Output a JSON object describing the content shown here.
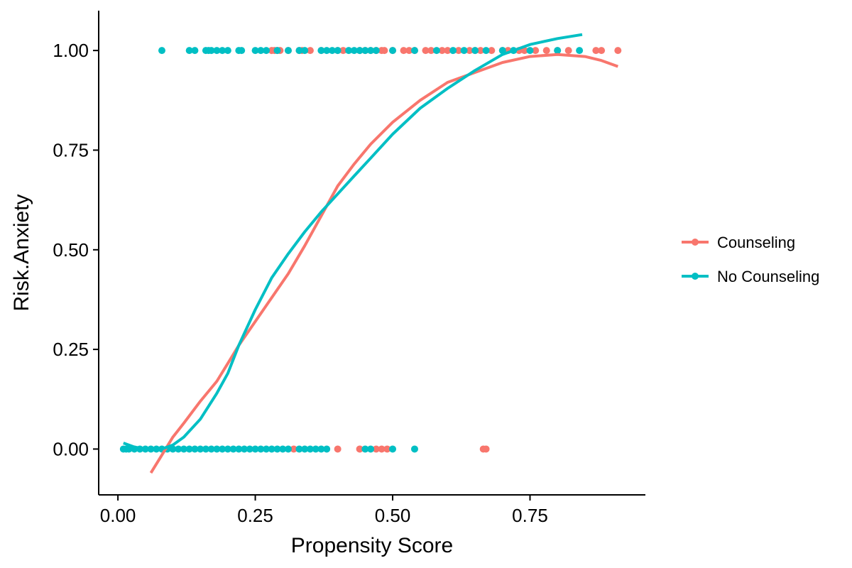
{
  "chart_data": {
    "type": "scatter",
    "title": "",
    "xlabel": "Propensity Score",
    "ylabel": "Risk.Anxiety",
    "xlim": [
      -0.035,
      0.96
    ],
    "ylim": [
      -0.115,
      1.1
    ],
    "x_ticks": [
      0.0,
      0.25,
      0.5,
      0.75
    ],
    "x_tick_labels": [
      "0.00",
      "0.25",
      "0.50",
      "0.75"
    ],
    "y_ticks": [
      0.0,
      0.25,
      0.5,
      0.75,
      1.0
    ],
    "y_tick_labels": [
      "0.00",
      "0.25",
      "0.50",
      "0.75",
      "1.00"
    ],
    "grid": false,
    "legend_position": "right",
    "series": [
      {
        "name": "Counseling",
        "color": "#F8766D",
        "points": [
          [
            0.28,
            1
          ],
          [
            0.285,
            1
          ],
          [
            0.29,
            1
          ],
          [
            0.295,
            1
          ],
          [
            0.31,
            1
          ],
          [
            0.33,
            1
          ],
          [
            0.335,
            1
          ],
          [
            0.35,
            1
          ],
          [
            0.37,
            1
          ],
          [
            0.4,
            1
          ],
          [
            0.41,
            1
          ],
          [
            0.44,
            1
          ],
          [
            0.45,
            1
          ],
          [
            0.46,
            1
          ],
          [
            0.47,
            1
          ],
          [
            0.48,
            1
          ],
          [
            0.485,
            1
          ],
          [
            0.5,
            1
          ],
          [
            0.52,
            1
          ],
          [
            0.53,
            1
          ],
          [
            0.54,
            1
          ],
          [
            0.56,
            1
          ],
          [
            0.57,
            1
          ],
          [
            0.59,
            1
          ],
          [
            0.6,
            1
          ],
          [
            0.62,
            1
          ],
          [
            0.64,
            1
          ],
          [
            0.65,
            1
          ],
          [
            0.66,
            1
          ],
          [
            0.68,
            1
          ],
          [
            0.7,
            1
          ],
          [
            0.71,
            1
          ],
          [
            0.73,
            1
          ],
          [
            0.74,
            1
          ],
          [
            0.76,
            1
          ],
          [
            0.78,
            1
          ],
          [
            0.8,
            1
          ],
          [
            0.82,
            1
          ],
          [
            0.87,
            1
          ],
          [
            0.88,
            1
          ],
          [
            0.91,
            1
          ],
          [
            0.32,
            0
          ],
          [
            0.4,
            0
          ],
          [
            0.44,
            0
          ],
          [
            0.47,
            0
          ],
          [
            0.48,
            0
          ],
          [
            0.49,
            0
          ],
          [
            0.665,
            0
          ],
          [
            0.67,
            0
          ]
        ],
        "trend": [
          [
            0.06,
            -0.06
          ],
          [
            0.08,
            -0.015
          ],
          [
            0.1,
            0.03
          ],
          [
            0.12,
            0.065
          ],
          [
            0.15,
            0.12
          ],
          [
            0.18,
            0.17
          ],
          [
            0.2,
            0.215
          ],
          [
            0.22,
            0.26
          ],
          [
            0.25,
            0.32
          ],
          [
            0.28,
            0.38
          ],
          [
            0.31,
            0.44
          ],
          [
            0.34,
            0.51
          ],
          [
            0.37,
            0.585
          ],
          [
            0.4,
            0.66
          ],
          [
            0.43,
            0.715
          ],
          [
            0.46,
            0.765
          ],
          [
            0.5,
            0.82
          ],
          [
            0.55,
            0.875
          ],
          [
            0.6,
            0.92
          ],
          [
            0.65,
            0.945
          ],
          [
            0.7,
            0.97
          ],
          [
            0.75,
            0.985
          ],
          [
            0.8,
            0.99
          ],
          [
            0.85,
            0.985
          ],
          [
            0.88,
            0.975
          ],
          [
            0.91,
            0.96
          ]
        ]
      },
      {
        "name": "No Counseling",
        "color": "#00BFC4",
        "points": [
          [
            0.08,
            1
          ],
          [
            0.13,
            1
          ],
          [
            0.14,
            1
          ],
          [
            0.16,
            1
          ],
          [
            0.165,
            1
          ],
          [
            0.17,
            1
          ],
          [
            0.18,
            1
          ],
          [
            0.19,
            1
          ],
          [
            0.2,
            1
          ],
          [
            0.22,
            1
          ],
          [
            0.225,
            1
          ],
          [
            0.25,
            1
          ],
          [
            0.26,
            1
          ],
          [
            0.27,
            1
          ],
          [
            0.29,
            1
          ],
          [
            0.31,
            1
          ],
          [
            0.33,
            1
          ],
          [
            0.34,
            1
          ],
          [
            0.37,
            1
          ],
          [
            0.38,
            1
          ],
          [
            0.39,
            1
          ],
          [
            0.4,
            1
          ],
          [
            0.42,
            1
          ],
          [
            0.43,
            1
          ],
          [
            0.44,
            1
          ],
          [
            0.45,
            1
          ],
          [
            0.46,
            1
          ],
          [
            0.47,
            1
          ],
          [
            0.5,
            1
          ],
          [
            0.54,
            1
          ],
          [
            0.58,
            1
          ],
          [
            0.61,
            1
          ],
          [
            0.63,
            1
          ],
          [
            0.65,
            1
          ],
          [
            0.67,
            1
          ],
          [
            0.7,
            1
          ],
          [
            0.72,
            1
          ],
          [
            0.75,
            1
          ],
          [
            0.8,
            1
          ],
          [
            0.84,
            1
          ],
          [
            0.01,
            0
          ],
          [
            0.015,
            0
          ],
          [
            0.02,
            0
          ],
          [
            0.03,
            0
          ],
          [
            0.04,
            0
          ],
          [
            0.05,
            0
          ],
          [
            0.06,
            0
          ],
          [
            0.07,
            0
          ],
          [
            0.08,
            0
          ],
          [
            0.09,
            0
          ],
          [
            0.1,
            0
          ],
          [
            0.11,
            0
          ],
          [
            0.12,
            0
          ],
          [
            0.13,
            0
          ],
          [
            0.14,
            0
          ],
          [
            0.15,
            0
          ],
          [
            0.16,
            0
          ],
          [
            0.17,
            0
          ],
          [
            0.18,
            0
          ],
          [
            0.19,
            0
          ],
          [
            0.2,
            0
          ],
          [
            0.21,
            0
          ],
          [
            0.22,
            0
          ],
          [
            0.23,
            0
          ],
          [
            0.24,
            0
          ],
          [
            0.25,
            0
          ],
          [
            0.26,
            0
          ],
          [
            0.27,
            0
          ],
          [
            0.28,
            0
          ],
          [
            0.29,
            0
          ],
          [
            0.3,
            0
          ],
          [
            0.31,
            0
          ],
          [
            0.33,
            0
          ],
          [
            0.34,
            0
          ],
          [
            0.35,
            0
          ],
          [
            0.36,
            0
          ],
          [
            0.37,
            0
          ],
          [
            0.38,
            0
          ],
          [
            0.45,
            0
          ],
          [
            0.46,
            0
          ],
          [
            0.5,
            0
          ],
          [
            0.54,
            0
          ]
        ],
        "trend": [
          [
            0.01,
            0.015
          ],
          [
            0.03,
            0.005
          ],
          [
            0.05,
            0.0
          ],
          [
            0.08,
            0.0
          ],
          [
            0.1,
            0.01
          ],
          [
            0.12,
            0.03
          ],
          [
            0.15,
            0.075
          ],
          [
            0.18,
            0.14
          ],
          [
            0.2,
            0.19
          ],
          [
            0.22,
            0.26
          ],
          [
            0.25,
            0.35
          ],
          [
            0.28,
            0.43
          ],
          [
            0.31,
            0.49
          ],
          [
            0.34,
            0.545
          ],
          [
            0.37,
            0.595
          ],
          [
            0.4,
            0.64
          ],
          [
            0.43,
            0.685
          ],
          [
            0.46,
            0.73
          ],
          [
            0.5,
            0.79
          ],
          [
            0.55,
            0.855
          ],
          [
            0.6,
            0.905
          ],
          [
            0.65,
            0.95
          ],
          [
            0.7,
            0.99
          ],
          [
            0.75,
            1.015
          ],
          [
            0.8,
            1.03
          ],
          [
            0.845,
            1.04
          ]
        ]
      }
    ]
  }
}
